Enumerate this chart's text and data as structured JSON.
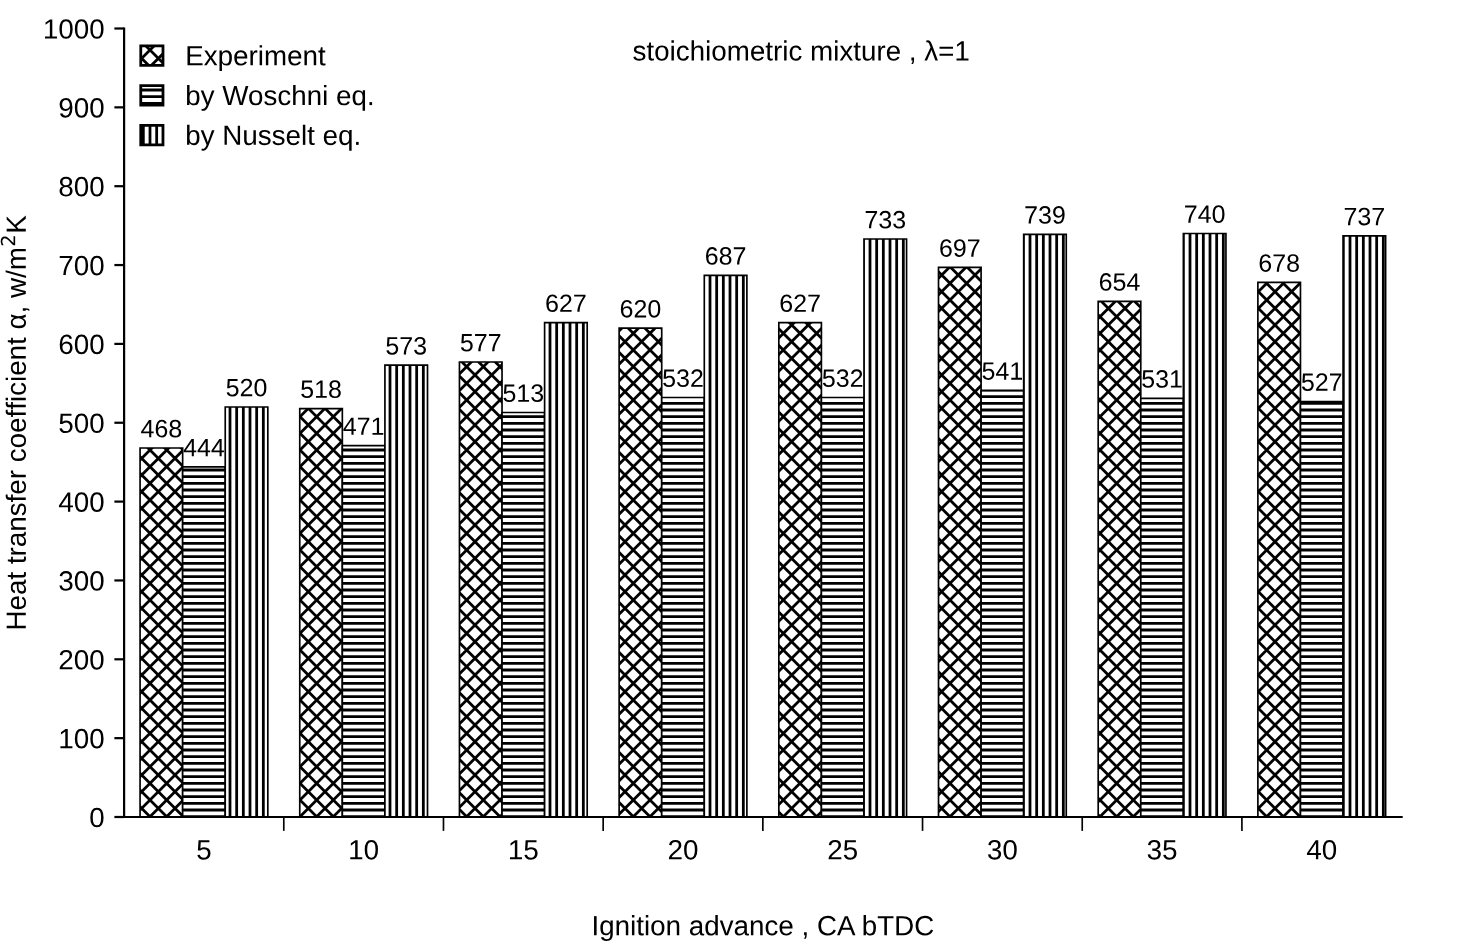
{
  "chart_data": {
    "type": "bar",
    "xlabel": "Ignition advance , CA bTDC",
    "ylabel": "Heat transfer coefficient α, w/m$^{2}$K",
    "categories": [
      "5",
      "10",
      "15",
      "20",
      "25",
      "30",
      "35",
      "40"
    ],
    "series": [
      {
        "name": "Experiment",
        "color": "#000000",
        "values": [
          468,
          518,
          577,
          620,
          627,
          697,
          654,
          678
        ]
      },
      {
        "name": "by Woschni eq.",
        "color": "#000000",
        "values": [
          444,
          471,
          513,
          532,
          532,
          541,
          531,
          527
        ]
      },
      {
        "name": "by Nusselt eq.",
        "color": "#000000",
        "values": [
          520,
          573,
          627,
          687,
          733,
          739,
          740,
          737
        ]
      }
    ],
    "ylim": [
      0,
      1000
    ],
    "yticks": [
      0,
      100,
      200,
      300,
      400,
      500,
      600,
      700,
      800,
      900,
      1000
    ],
    "data_labels": true,
    "legend": "top left",
    "grid": false,
    "annotations": [
      "stoichiometric mixture , λ=1"
    ]
  }
}
